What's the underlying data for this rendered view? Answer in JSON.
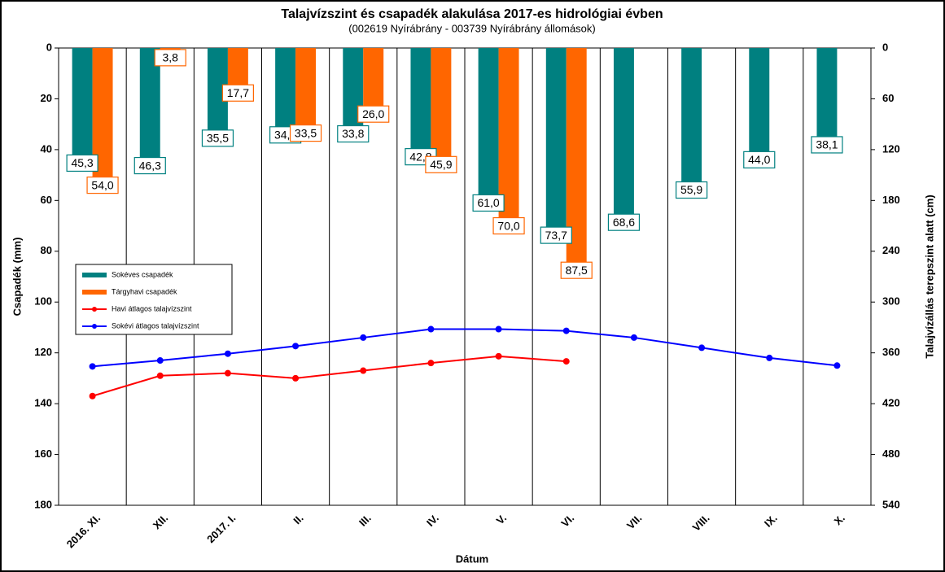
{
  "chart_data": {
    "type": "bar",
    "title": "Talajvízszint és csapadék alakulása 2017-es hidrológiai évben",
    "subtitle": "(002619  Nyírábrány  - 003739  Nyírábrány  állomások)",
    "xlabel": "Dátum",
    "ylabel": "Csapadék (mm)",
    "y2label": "Talajvízállás terepszint alatt (cm)",
    "categories": [
      "2016. XI.",
      "XII.",
      "2017. I.",
      "II.",
      "III.",
      "IV.",
      "V.",
      "VI.",
      "VII.",
      "VIII.",
      "IX.",
      "X."
    ],
    "ylim": [
      0,
      180
    ],
    "yticks": [
      0,
      20,
      40,
      60,
      80,
      100,
      120,
      140,
      160,
      180
    ],
    "y2lim": [
      0,
      540
    ],
    "y2ticks": [
      0,
      60,
      120,
      180,
      240,
      300,
      360,
      420,
      480,
      540
    ],
    "inverted": true,
    "legend": "left",
    "series": [
      {
        "name": "Sokéves csapadék",
        "type": "bar",
        "color": "#008080",
        "values": [
          45.3,
          46.3,
          35.5,
          34.2,
          33.8,
          42.8,
          61.0,
          73.7,
          68.6,
          55.9,
          44.0,
          38.1
        ],
        "value_labels": [
          "45,3",
          "46,3",
          "35,5",
          "34,2",
          "33,8",
          "42,8",
          "61,0",
          "73,7",
          "68,6",
          "55,9",
          "44,0",
          "38,1"
        ]
      },
      {
        "name": "Tárgyhavi csapadék",
        "type": "bar",
        "color": "#ff6600",
        "values": [
          54.0,
          3.8,
          17.7,
          33.5,
          26.0,
          45.9,
          70.0,
          87.5,
          null,
          null,
          null,
          null
        ],
        "value_labels": [
          "54,0",
          "3,8",
          "17,7",
          "33,5",
          "26,0",
          "45,9",
          "70,0",
          "87,5",
          null,
          null,
          null,
          null
        ]
      },
      {
        "name": "Havi átlagos talajvízszint",
        "type": "line",
        "axis": "y2",
        "color": "#ff0000",
        "values": [
          411,
          387,
          384,
          390,
          381,
          372,
          364,
          370,
          null,
          null,
          null,
          null
        ]
      },
      {
        "name": "Sokévi átlagos talajvízszint",
        "type": "line",
        "axis": "y2",
        "color": "#0000ff",
        "values": [
          376,
          369,
          361,
          352,
          342,
          332,
          332,
          334,
          342,
          354,
          366,
          375
        ]
      }
    ]
  }
}
